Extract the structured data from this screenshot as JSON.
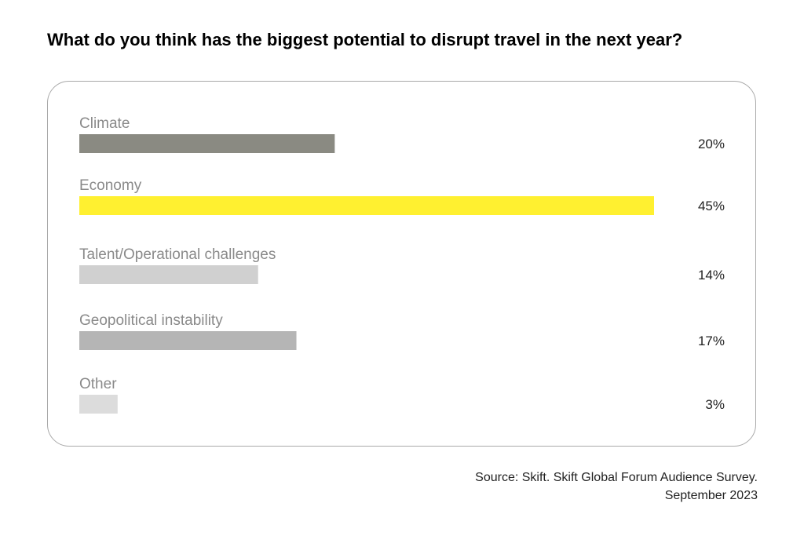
{
  "chart_data": {
    "type": "bar",
    "orientation": "horizontal",
    "title": "What do you think has the biggest potential to disrupt travel in the next year?",
    "categories": [
      "Climate",
      "Economy",
      "Talent/Operational challenges",
      "Geopolitical instability",
      "Other"
    ],
    "values": [
      20,
      45,
      14,
      17,
      3
    ],
    "value_labels": [
      "20%",
      "45%",
      "14%",
      "17%",
      "3%"
    ],
    "unit": "%",
    "colors": [
      "#8a8a82",
      "#fff030",
      "#d0d0d0",
      "#b5b5b5",
      "#dcdcdc"
    ],
    "xlim": [
      0,
      45
    ],
    "grid": false,
    "legend": "none"
  },
  "source": {
    "line1": "Source: Skift. Skift Global Forum Audience Survey.",
    "line2": "September 2023"
  }
}
